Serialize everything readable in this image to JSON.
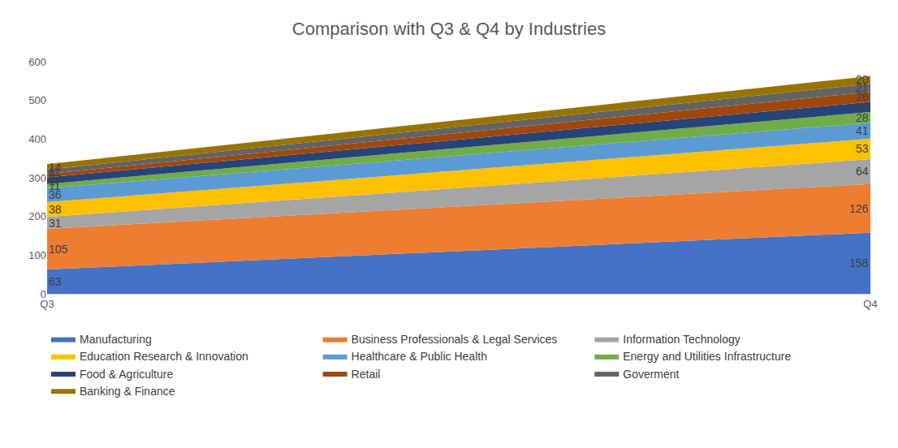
{
  "chart_data": {
    "type": "stacked_area",
    "title": "Comparison with Q3 & Q4 by Industries",
    "categories": [
      "Q3",
      "Q4"
    ],
    "stacked": true,
    "data_labels": true,
    "legend": "bottom",
    "grid": false,
    "ylim": [
      0,
      600
    ],
    "yticks": [
      0,
      100,
      200,
      300,
      400,
      500,
      600
    ],
    "series": [
      {
        "name": "Manufacturing",
        "color": "#4472c4",
        "values": [
          63,
          158
        ]
      },
      {
        "name": "Business Professionals & Legal Services",
        "color": "#ed7d31",
        "values": [
          105,
          126
        ]
      },
      {
        "name": "Information Technology",
        "color": "#a5a5a5",
        "values": [
          31,
          64
        ]
      },
      {
        "name": "Education Research & Innovation",
        "color": "#ffc000",
        "values": [
          38,
          53
        ]
      },
      {
        "name": "Healthcare & Public Health",
        "color": "#5b9bd5",
        "values": [
          36,
          41
        ]
      },
      {
        "name": "Energy and Utilities Infrastructure",
        "color": "#70ad47",
        "values": [
          11,
          28
        ]
      },
      {
        "name": "Food & Agriculture",
        "color": "#264478",
        "values": [
          17,
          26
        ]
      },
      {
        "name": "Retail",
        "color": "#9e480e",
        "values": [
          9,
          26
        ]
      },
      {
        "name": "Goverment",
        "color": "#636363",
        "values": [
          11,
          21
        ]
      },
      {
        "name": "Banking & Finance",
        "color": "#997300",
        "values": [
          14,
          20
        ]
      }
    ]
  }
}
